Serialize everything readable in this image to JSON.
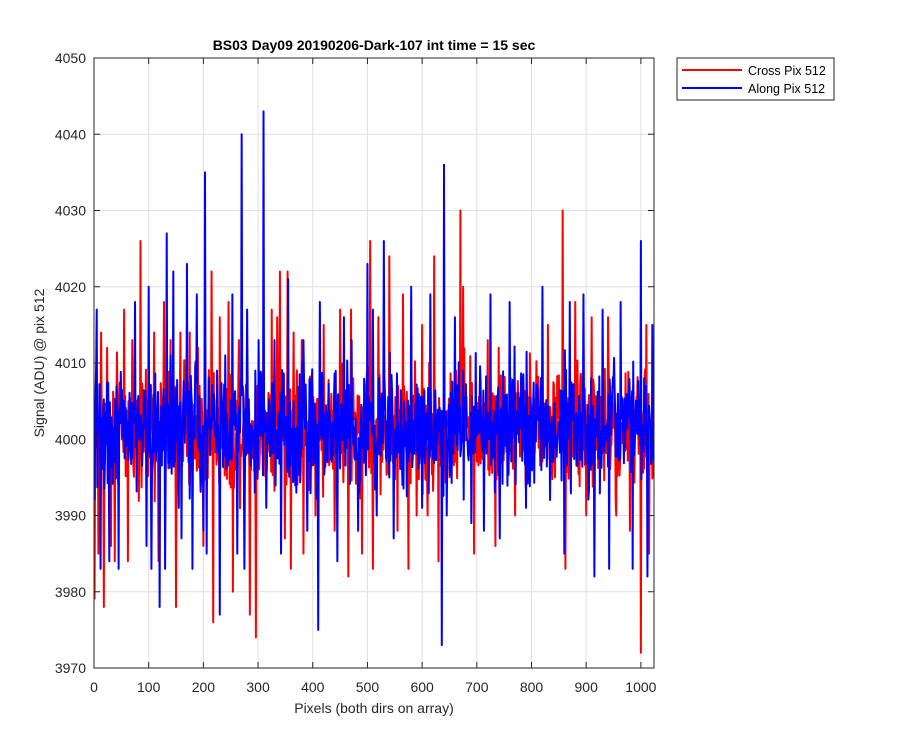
{
  "chart_data": {
    "type": "line",
    "title": "BS03 Day09 20190206-Dark-107 int time = 15 sec",
    "xlabel": "Pixels (both dirs on array)",
    "ylabel": "Signal (ADU) @ pix 512",
    "xlim": [
      0,
      1024
    ],
    "ylim": [
      3970,
      4050
    ],
    "x_ticks": [
      0,
      100,
      200,
      300,
      400,
      500,
      600,
      700,
      800,
      900,
      1000
    ],
    "y_ticks": [
      3970,
      3980,
      3990,
      4000,
      4010,
      4020,
      4030,
      4040,
      4050
    ],
    "grid": true,
    "legend_position": "outside-top-right",
    "series": [
      {
        "name": "Cross Pix 512",
        "color": "#ff0000",
        "x_start": 1,
        "x_end": 1024,
        "baseline": 4001.5,
        "noise_amplitude": 13,
        "spikes": [
          [
            1,
            3979
          ],
          [
            8,
            3985
          ],
          [
            13,
            4014
          ],
          [
            18,
            3978
          ],
          [
            24,
            4012
          ],
          [
            31,
            3986
          ],
          [
            38,
            3984
          ],
          [
            55,
            4017
          ],
          [
            62,
            3984
          ],
          [
            70,
            4013
          ],
          [
            85,
            4026
          ],
          [
            100,
            4010
          ],
          [
            110,
            4014
          ],
          [
            118,
            3984
          ],
          [
            128,
            4018
          ],
          [
            140,
            4013
          ],
          [
            150,
            3978
          ],
          [
            158,
            4014
          ],
          [
            175,
            4014
          ],
          [
            190,
            4012
          ],
          [
            200,
            3986
          ],
          [
            215,
            4022
          ],
          [
            218,
            3976
          ],
          [
            230,
            4016
          ],
          [
            246,
            4018
          ],
          [
            254,
            3980
          ],
          [
            265,
            4013
          ],
          [
            285,
            3977
          ],
          [
            296,
            3974
          ],
          [
            310,
            4008
          ],
          [
            325,
            4017
          ],
          [
            335,
            4016
          ],
          [
            340,
            4022
          ],
          [
            349,
            3987
          ],
          [
            354,
            4022
          ],
          [
            360,
            3983
          ],
          [
            365,
            4014
          ],
          [
            380,
            4013
          ],
          [
            383,
            3985
          ],
          [
            405,
            3990
          ],
          [
            420,
            4015
          ],
          [
            440,
            3988
          ],
          [
            450,
            4017
          ],
          [
            465,
            3982
          ],
          [
            470,
            4017
          ],
          [
            490,
            3985
          ],
          [
            505,
            4026
          ],
          [
            510,
            3983
          ],
          [
            520,
            4016
          ],
          [
            540,
            4024
          ],
          [
            555,
            3988
          ],
          [
            565,
            4019
          ],
          [
            575,
            3983
          ],
          [
            580,
            4017
          ],
          [
            590,
            3990
          ],
          [
            600,
            4015
          ],
          [
            610,
            3990
          ],
          [
            622,
            4024
          ],
          [
            630,
            3984
          ],
          [
            650,
            3995
          ],
          [
            670,
            4030
          ],
          [
            675,
            4020
          ],
          [
            695,
            3985
          ],
          [
            720,
            4013
          ],
          [
            734,
            3986
          ],
          [
            740,
            4012
          ],
          [
            760,
            4008
          ],
          [
            770,
            3990
          ],
          [
            790,
            3993
          ],
          [
            830,
            4015
          ],
          [
            843,
            3995
          ],
          [
            857,
            4030
          ],
          [
            862,
            3983
          ],
          [
            880,
            4018
          ],
          [
            900,
            3990
          ],
          [
            910,
            4016
          ],
          [
            940,
            4016
          ],
          [
            955,
            3990
          ],
          [
            975,
            4005
          ],
          [
            980,
            3988
          ],
          [
            1000,
            3972
          ],
          [
            1010,
            4015
          ],
          [
            1015,
            3985
          ]
        ]
      },
      {
        "name": "Along Pix 512",
        "color": "#0000ff",
        "x_start": 1,
        "x_end": 1024,
        "baseline": 4001.5,
        "noise_amplitude": 13,
        "spikes": [
          [
            1,
            3992
          ],
          [
            5,
            4017
          ],
          [
            12,
            3983
          ],
          [
            28,
            3984
          ],
          [
            35,
            4000
          ],
          [
            45,
            3983
          ],
          [
            75,
            4018
          ],
          [
            96,
            3986
          ],
          [
            100,
            4020
          ],
          [
            105,
            3983
          ],
          [
            120,
            3978
          ],
          [
            130,
            3983
          ],
          [
            133,
            4027
          ],
          [
            140,
            4011
          ],
          [
            145,
            4022
          ],
          [
            155,
            3991
          ],
          [
            160,
            3987
          ],
          [
            170,
            4023
          ],
          [
            180,
            3983
          ],
          [
            188,
            4019
          ],
          [
            200,
            3988
          ],
          [
            203,
            4035
          ],
          [
            206,
            3985
          ],
          [
            225,
            4009
          ],
          [
            230,
            3977
          ],
          [
            240,
            4011
          ],
          [
            253,
            4019
          ],
          [
            262,
            3985
          ],
          [
            270,
            4040
          ],
          [
            275,
            3983
          ],
          [
            280,
            4017
          ],
          [
            294,
            3993
          ],
          [
            301,
            4013
          ],
          [
            310,
            4043
          ],
          [
            315,
            3991
          ],
          [
            330,
            4013
          ],
          [
            342,
            3985
          ],
          [
            355,
            4021
          ],
          [
            370,
            3993
          ],
          [
            383,
            4013
          ],
          [
            390,
            3988
          ],
          [
            410,
            3975
          ],
          [
            413,
            4018
          ],
          [
            430,
            4002
          ],
          [
            445,
            3984
          ],
          [
            457,
            4016
          ],
          [
            471,
            4013
          ],
          [
            483,
            3988
          ],
          [
            500,
            4023
          ],
          [
            510,
            4017
          ],
          [
            517,
            3990
          ],
          [
            530,
            4026
          ],
          [
            548,
            3987
          ],
          [
            564,
            3994
          ],
          [
            580,
            4020
          ],
          [
            600,
            3991
          ],
          [
            615,
            4019
          ],
          [
            636,
            3973
          ],
          [
            640,
            4036
          ],
          [
            645,
            3990
          ],
          [
            660,
            4016
          ],
          [
            675,
            4009
          ],
          [
            690,
            3989
          ],
          [
            713,
            3988
          ],
          [
            725,
            4019
          ],
          [
            742,
            3987
          ],
          [
            760,
            4018
          ],
          [
            790,
            3991
          ],
          [
            820,
            4020
          ],
          [
            840,
            3997
          ],
          [
            860,
            3985
          ],
          [
            870,
            4018
          ],
          [
            895,
            4019
          ],
          [
            915,
            3982
          ],
          [
            930,
            4017
          ],
          [
            942,
            3983
          ],
          [
            963,
            4018
          ],
          [
            985,
            3983
          ],
          [
            1000,
            4026
          ],
          [
            1006,
            4008
          ],
          [
            1012,
            3982
          ],
          [
            1021,
            4015
          ]
        ]
      }
    ]
  }
}
